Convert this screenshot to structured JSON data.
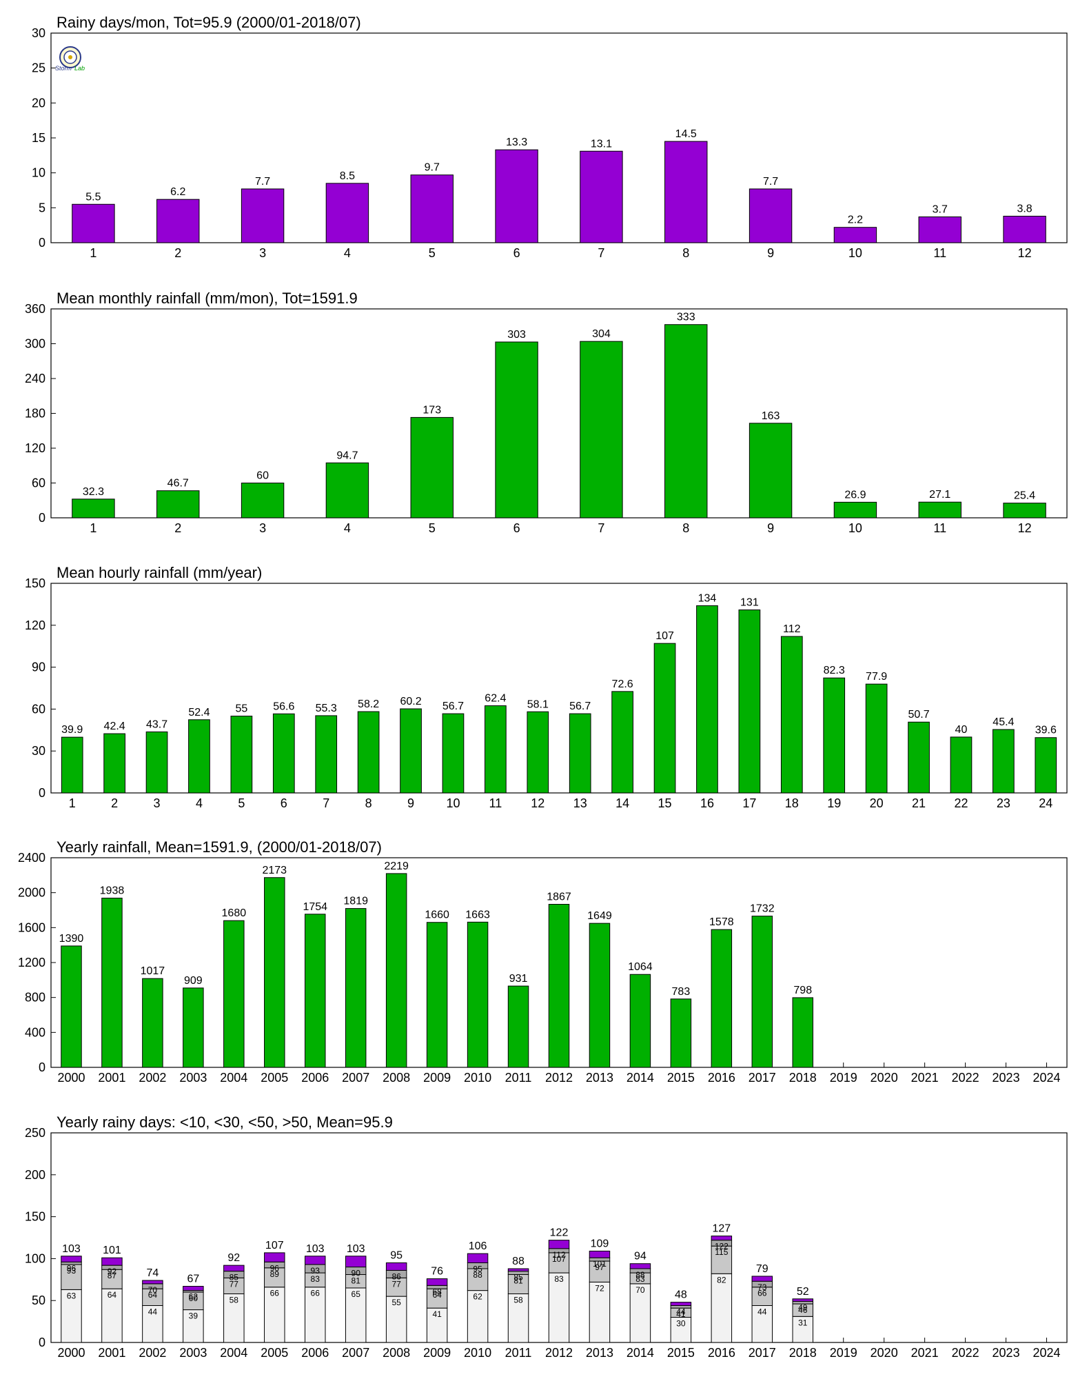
{
  "colors": {
    "purple": "#9400d3",
    "green": "#00b000",
    "white_seg": "#f2f2f2",
    "gray_seg": "#c8c8c8",
    "dgray_seg": "#a8a8a8"
  },
  "logo": {
    "icon": "seal-logo-icon",
    "text_left": "Storm",
    "text_right": "Lab"
  },
  "chart_data": [
    {
      "type": "bar",
      "title": "Rainy days/mon, Tot=95.9 (2000/01-2018/07)",
      "categories": [
        "1",
        "2",
        "3",
        "4",
        "5",
        "6",
        "7",
        "8",
        "9",
        "10",
        "11",
        "12"
      ],
      "values": [
        5.5,
        6.2,
        7.7,
        8.5,
        9.7,
        13.3,
        13.1,
        14.5,
        7.7,
        2.2,
        3.7,
        3.8
      ],
      "labels": [
        "5.5",
        "6.2",
        "7.7",
        "8.5",
        "9.7",
        "13.3",
        "13.1",
        "14.5",
        "7.7",
        "2.2",
        "3.7",
        "3.8"
      ],
      "ylim": [
        0,
        30
      ],
      "yticks": [
        "0",
        "5",
        "10",
        "15",
        "20",
        "25",
        "30"
      ],
      "color": "#9400d3",
      "grid": false
    },
    {
      "type": "bar",
      "title": "Mean monthly rainfall (mm/mon), Tot=1591.9",
      "categories": [
        "1",
        "2",
        "3",
        "4",
        "5",
        "6",
        "7",
        "8",
        "9",
        "10",
        "11",
        "12"
      ],
      "values": [
        32.3,
        46.7,
        60,
        94.7,
        173,
        303,
        304,
        333,
        163,
        26.9,
        27.1,
        25.4
      ],
      "labels": [
        "32.3",
        "46.7",
        "60",
        "94.7",
        "173",
        "303",
        "304",
        "333",
        "163",
        "26.9",
        "27.1",
        "25.4"
      ],
      "ylim": [
        0,
        360
      ],
      "yticks": [
        "0",
        "60",
        "120",
        "180",
        "240",
        "300",
        "360"
      ],
      "color": "#00b000",
      "grid": false
    },
    {
      "type": "bar",
      "title": "Mean hourly rainfall (mm/year)",
      "categories": [
        "1",
        "2",
        "3",
        "4",
        "5",
        "6",
        "7",
        "8",
        "9",
        "10",
        "11",
        "12",
        "13",
        "14",
        "15",
        "16",
        "17",
        "18",
        "19",
        "20",
        "21",
        "22",
        "23",
        "24"
      ],
      "values": [
        39.9,
        42.4,
        43.7,
        52.4,
        55,
        56.6,
        55.3,
        58.2,
        60.2,
        56.7,
        62.4,
        58.1,
        56.7,
        72.6,
        107,
        134,
        131,
        112,
        82.3,
        77.9,
        50.7,
        40,
        45.4,
        39.6
      ],
      "labels": [
        "39.9",
        "42.4",
        "43.7",
        "52.4",
        "55",
        "56.6",
        "55.3",
        "58.2",
        "60.2",
        "56.7",
        "62.4",
        "58.1",
        "56.7",
        "72.6",
        "107",
        "134",
        "131",
        "112",
        "82.3",
        "77.9",
        "50.7",
        "40",
        "45.4",
        "39.6"
      ],
      "ylim": [
        0,
        150
      ],
      "yticks": [
        "0",
        "30",
        "60",
        "90",
        "120",
        "150"
      ],
      "color": "#00b000",
      "grid": false
    },
    {
      "type": "bar",
      "title": "Yearly rainfall, Mean=1591.9, (2000/01-2018/07)",
      "categories": [
        "2000",
        "2001",
        "2002",
        "2003",
        "2004",
        "2005",
        "2006",
        "2007",
        "2008",
        "2009",
        "2010",
        "2011",
        "2012",
        "2013",
        "2014",
        "2015",
        "2016",
        "2017",
        "2018",
        "2019",
        "2020",
        "2021",
        "2022",
        "2023",
        "2024"
      ],
      "values": [
        1390,
        1938,
        1017,
        909,
        1680,
        2173,
        1754,
        1819,
        2219,
        1660,
        1663,
        931,
        1867,
        1649,
        1064,
        783,
        1578,
        1732,
        798,
        null,
        null,
        null,
        null,
        null,
        null
      ],
      "labels": [
        "1390",
        "1938",
        "1017",
        "909",
        "1680",
        "2173",
        "1754",
        "1819",
        "2219",
        "1660",
        "1663",
        "931",
        "1867",
        "1649",
        "1064",
        "783",
        "1578",
        "1732",
        "798",
        "",
        "",
        "",
        "",
        "",
        ""
      ],
      "ylim": [
        0,
        2400
      ],
      "yticks": [
        "0",
        "400",
        "800",
        "1200",
        "1600",
        "2000",
        "2400"
      ],
      "color": "#00b000",
      "grid": false
    },
    {
      "type": "bar",
      "stacked": true,
      "title": "Yearly rainy days: <10, <30, <50, >50, Mean=95.9",
      "categories": [
        "2000",
        "2001",
        "2002",
        "2003",
        "2004",
        "2005",
        "2006",
        "2007",
        "2008",
        "2009",
        "2010",
        "2011",
        "2012",
        "2013",
        "2014",
        "2015",
        "2016",
        "2017",
        "2018",
        "2019",
        "2020",
        "2021",
        "2022",
        "2023",
        "2024"
      ],
      "cumulative": [
        {
          "c10": 63,
          "c30": 93,
          "c50": 96,
          "total": 103,
          "labels": [
            "63",
            "93",
            "96",
            "103"
          ]
        },
        {
          "c10": 64,
          "c30": 87,
          "c50": 92,
          "total": 101,
          "labels": [
            "64",
            "87",
            "92",
            "101"
          ]
        },
        {
          "c10": 44,
          "c30": 64,
          "c50": 70,
          "total": 74,
          "labels": [
            "44",
            "64",
            "70",
            "74"
          ]
        },
        {
          "c10": 39,
          "c30": 60,
          "c50": 62,
          "total": 67,
          "labels": [
            "39",
            "60",
            "62",
            "67"
          ]
        },
        {
          "c10": 58,
          "c30": 77,
          "c50": 85,
          "total": 92,
          "labels": [
            "58",
            "77",
            "85",
            "92"
          ]
        },
        {
          "c10": 66,
          "c30": 89,
          "c50": 96,
          "total": 107,
          "labels": [
            "66",
            "89",
            "96",
            "107"
          ]
        },
        {
          "c10": 66,
          "c30": 83,
          "c50": 93,
          "total": 103,
          "labels": [
            "66",
            "83",
            "93",
            "103"
          ]
        },
        {
          "c10": 65,
          "c30": 81,
          "c50": 90,
          "total": 103,
          "labels": [
            "65",
            "81",
            "90",
            "103"
          ]
        },
        {
          "c10": 55,
          "c30": 77,
          "c50": 86,
          "total": 95,
          "labels": [
            "55",
            "77",
            "86",
            "95"
          ]
        },
        {
          "c10": 41,
          "c30": 64,
          "c50": 68,
          "total": 76,
          "labels": [
            "41",
            "64",
            "68",
            "76"
          ]
        },
        {
          "c10": 62,
          "c30": 88,
          "c50": 95,
          "total": 106,
          "labels": [
            "62",
            "88",
            "95",
            "106"
          ]
        },
        {
          "c10": 58,
          "c30": 81,
          "c50": 85,
          "total": 88,
          "labels": [
            "58",
            "81",
            "85",
            "88"
          ]
        },
        {
          "c10": 83,
          "c30": 107,
          "c50": 112,
          "total": 122,
          "labels": [
            "83",
            "107",
            "112",
            "122"
          ]
        },
        {
          "c10": 72,
          "c30": 97,
          "c50": 101,
          "total": 109,
          "labels": [
            "72",
            "97",
            "101",
            "109"
          ]
        },
        {
          "c10": 70,
          "c30": 83,
          "c50": 88,
          "total": 94,
          "labels": [
            "70",
            "83",
            "88",
            "94"
          ]
        },
        {
          "c10": 30,
          "c30": 41,
          "c50": 44,
          "total": 48,
          "labels": [
            "30",
            "41",
            "44",
            "48"
          ]
        },
        {
          "c10": 82,
          "c30": 115,
          "c50": 122,
          "total": 127,
          "labels": [
            "82",
            "115",
            "122",
            "127"
          ]
        },
        {
          "c10": 44,
          "c30": 66,
          "c50": 73,
          "total": 79,
          "labels": [
            "44",
            "66",
            "73",
            "79"
          ]
        },
        {
          "c10": 31,
          "c30": 46,
          "c50": 49,
          "total": 52,
          "labels": [
            "31",
            "46",
            "49",
            "52"
          ]
        },
        null,
        null,
        null,
        null,
        null,
        null
      ],
      "ylim": [
        0,
        250
      ],
      "yticks": [
        "0",
        "50",
        "100",
        "150",
        "200",
        "250"
      ],
      "colors": [
        "#f2f2f2",
        "#c8c8c8",
        "#a8a8a8",
        "#9400d3"
      ],
      "grid": false
    }
  ]
}
